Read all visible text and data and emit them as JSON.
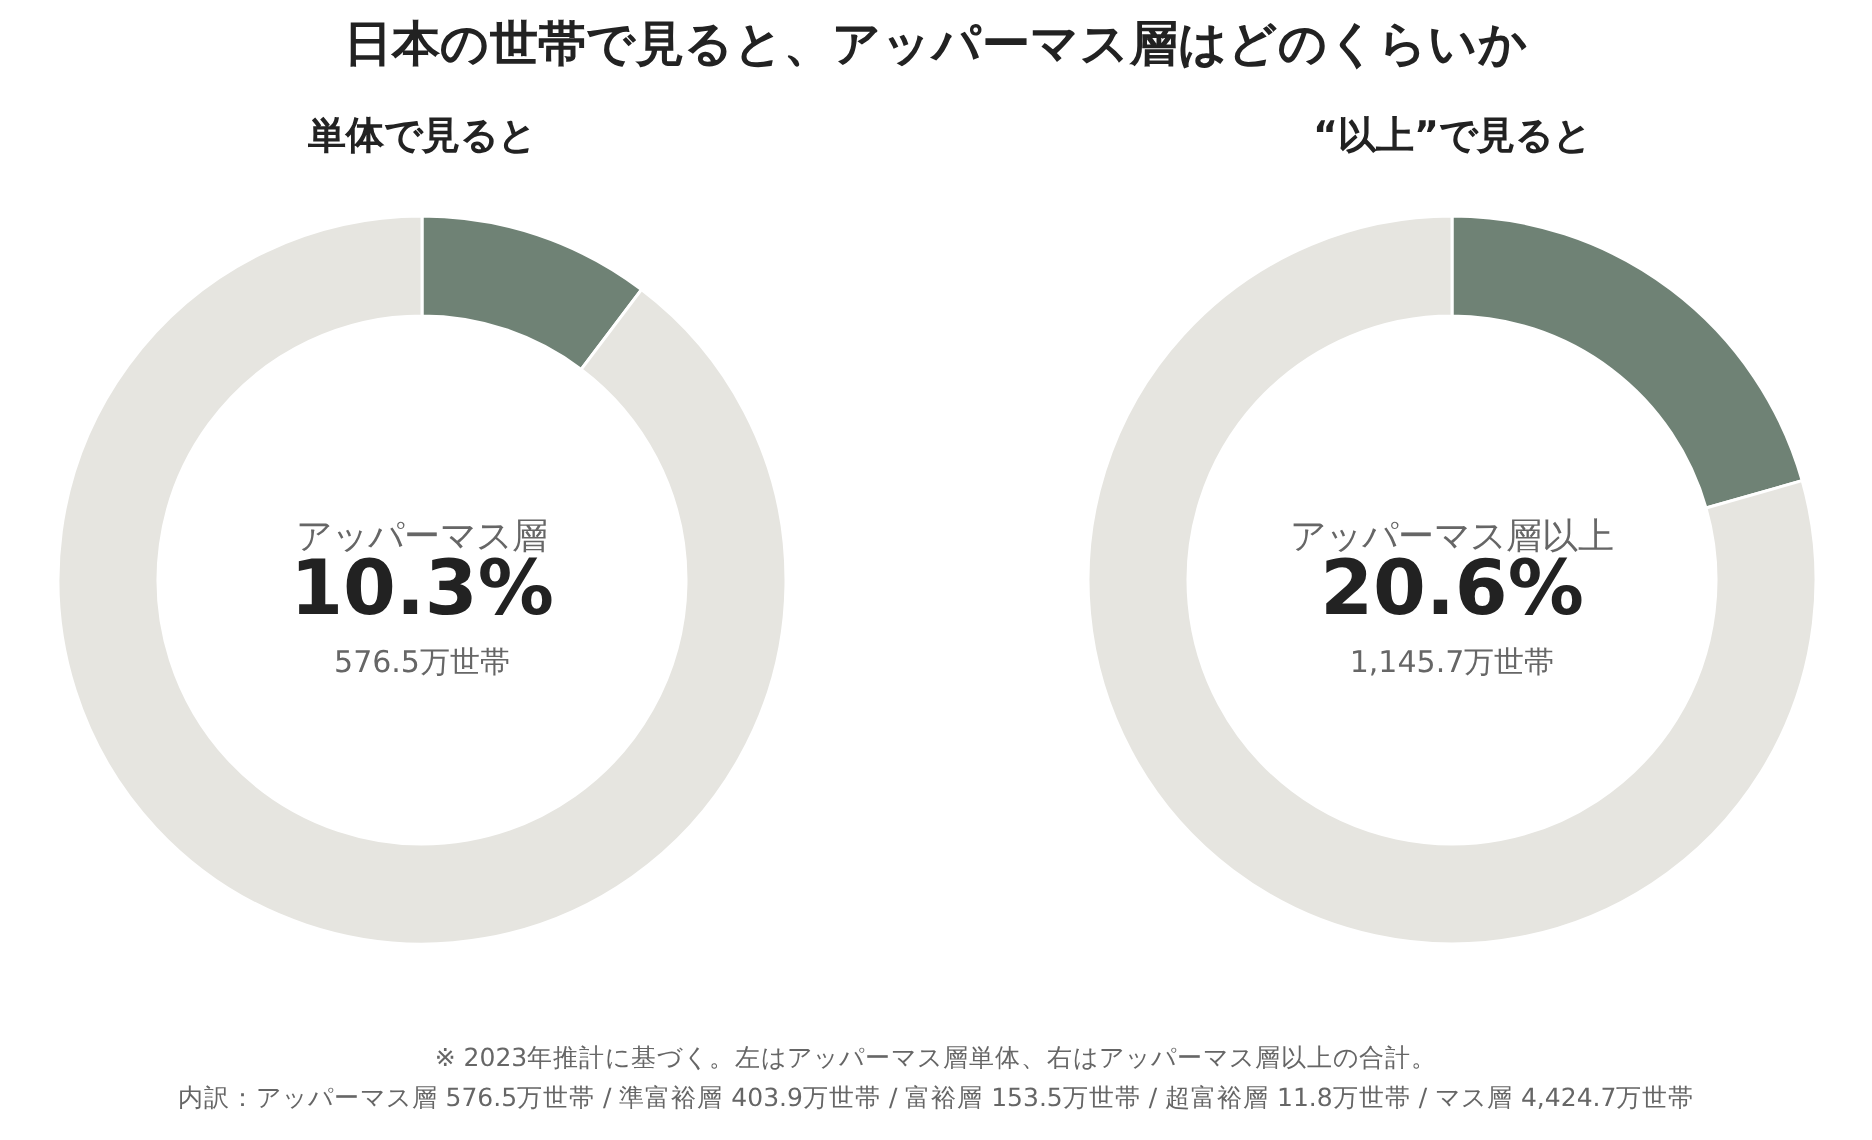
{
  "chart_data": [
    {
      "type": "donut",
      "title": "日本の世帯で見ると、アッパーマス層はどのくらいか",
      "subtitle": "単体で見ると",
      "categories": [
        "アッパーマス層",
        null
      ],
      "values": [
        10.3,
        89.7
      ],
      "colors": [
        "#6f8275",
        "#e6e5e0"
      ],
      "value_labels": [
        "10.3%",
        null
      ],
      "annotations": [
        "576.5万世帯",
        "※ 2023年推計に基づく。左はアッパーマス層単体、右はアッパーマス層以上の合計。",
        "内訳：アッパーマス層 576.5万世帯 / 準富裕層 403.9万世帯 / 富裕層 153.5万世帯 / 超富裕層 11.8万世帯 / マス層 4,424.7万世帯"
      ]
    },
    {
      "type": "donut",
      "subtitle": "“以上”で見ると",
      "categories": [
        "アッパーマス層以上",
        null
      ],
      "values": [
        20.6,
        79.4
      ],
      "colors": [
        "#6f8275",
        "#e6e5e0"
      ],
      "value_labels": [
        "20.6%",
        null
      ],
      "annotations": [
        "1,145.7万世帯"
      ]
    }
  ]
}
